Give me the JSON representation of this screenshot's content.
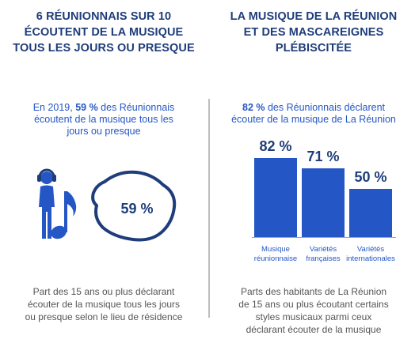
{
  "left": {
    "title_lines": [
      "6 RÉUNIONNAIS SUR 10",
      "ÉCOUTENT DE LA MUSIQUE",
      "TOUS LES JOURS OU PRESQUE"
    ],
    "subtitle_prefix": "En 2019, ",
    "subtitle_highlight": "59 %",
    "subtitle_suffix_lines": [
      " des Réunionnais",
      "écoutent de la musique tous les",
      "jours ou presque"
    ],
    "map_value": "59 %",
    "footnote_lines": [
      "Part des 15 ans ou plus déclarant",
      "écouter de la musique tous les jours",
      "ou presque selon le lieu de résidence"
    ],
    "icons": [
      "person-with-headphones-icon",
      "music-note-icon",
      "reunion-island-map-icon"
    ]
  },
  "right": {
    "title_lines": [
      "LA MUSIQUE DE LA RÉUNION",
      "ET DES MASCAREIGNES",
      "PLÉBISCITÉE"
    ],
    "subtitle_highlight": "82 %",
    "subtitle_suffix_lines": [
      " des Réunionnais déclarent",
      "écouter de la musique de La Réunion"
    ],
    "footnote_lines": [
      "Parts des habitants de La Réunion",
      "de 15 ans ou plus écoutant certains",
      "styles musicaux  parmi ceux",
      "déclarant écouter de la musique"
    ]
  },
  "chart_data": {
    "type": "bar",
    "categories": [
      "Musique réunionnaise",
      "Variétés françaises",
      "Variétés internationales"
    ],
    "category_lines": [
      [
        "Musique",
        "réunionnaise"
      ],
      [
        "Variétés",
        "françaises"
      ],
      [
        "Variétés",
        "internationales"
      ]
    ],
    "values": [
      82,
      71,
      50
    ],
    "value_labels": [
      "82 %",
      "71 %",
      "50 %"
    ],
    "unit": "%",
    "ylim": [
      0,
      82
    ],
    "grid": false,
    "bar_color": "#2457c5"
  },
  "colors": {
    "title": "#1f3d7a",
    "accent": "#2457c5",
    "text": "#555555",
    "divider": "#bdbdbd"
  }
}
